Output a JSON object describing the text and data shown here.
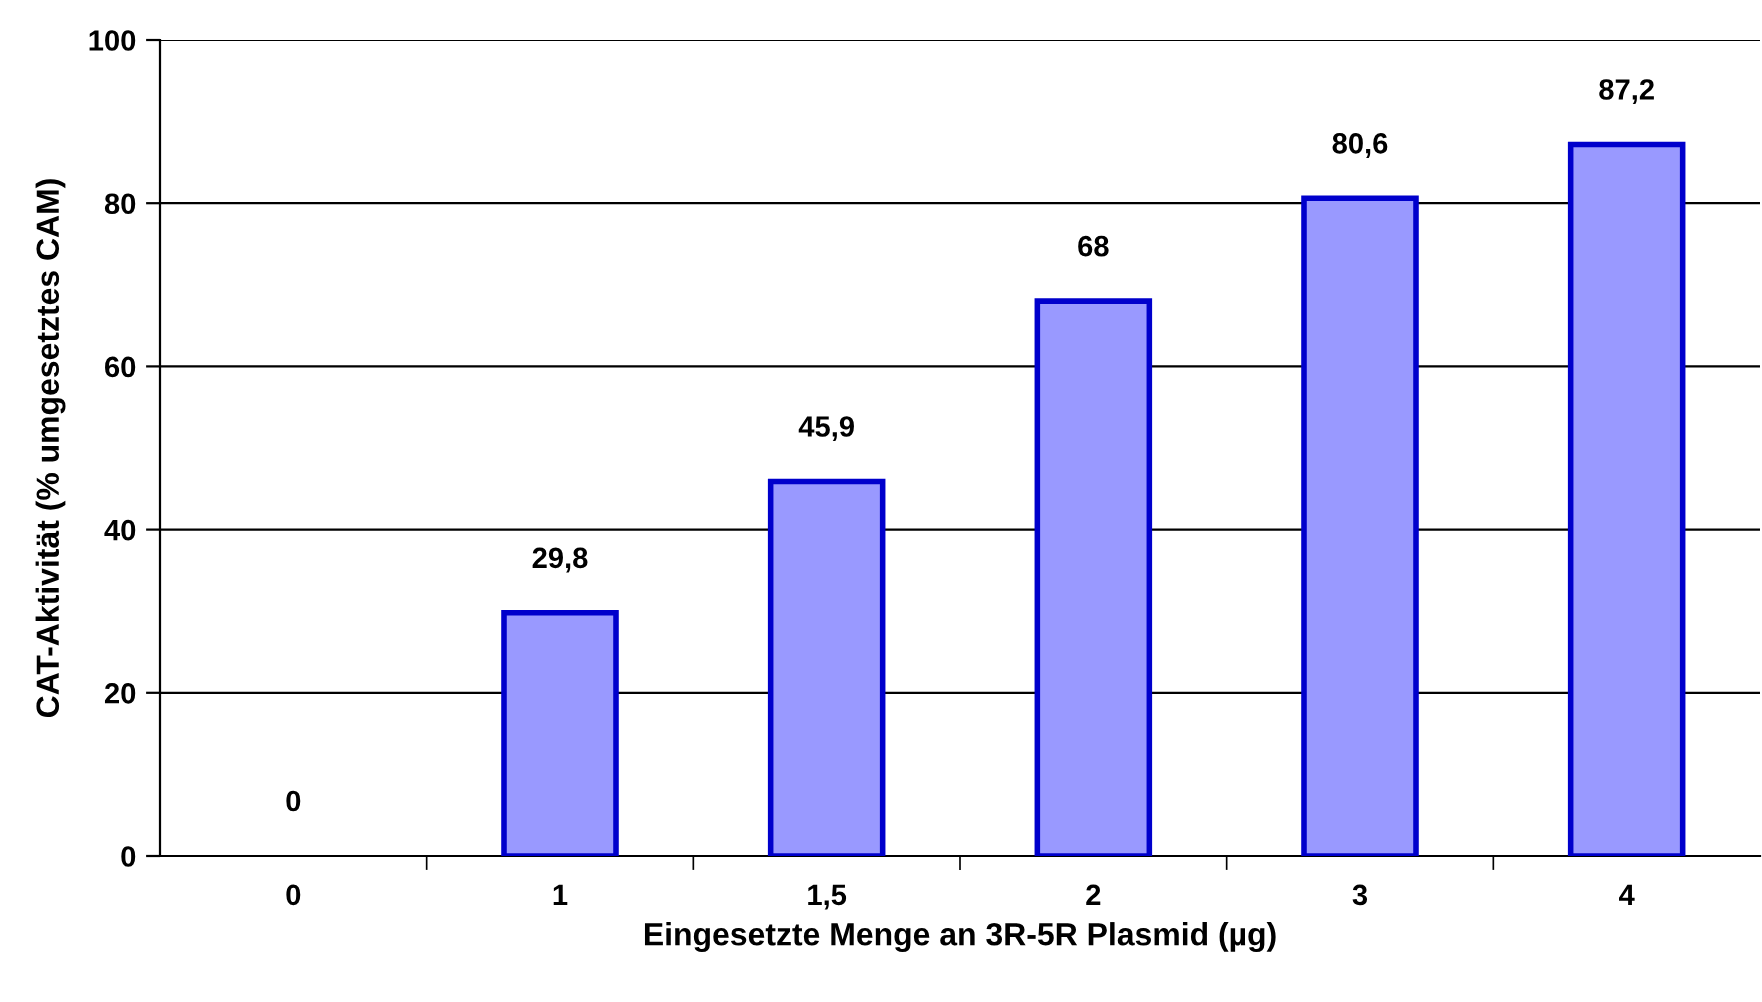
{
  "chart_data": {
    "type": "bar",
    "xlabel": "Eingesetzte Menge an 3R-5R Plasmid (µg)",
    "ylabel": "CAT-Aktivität (% umgesetztes CAM)",
    "categories": [
      "0",
      "1",
      "1,5",
      "2",
      "3",
      "4"
    ],
    "values": [
      0,
      29.8,
      45.9,
      68,
      80.6,
      87.2
    ],
    "value_labels": [
      "0",
      "29,8",
      "45,9",
      "68",
      "80,6",
      "87,2"
    ],
    "color": "#9999ff",
    "ylim": [
      0,
      100
    ],
    "yticks": [
      0,
      20,
      40,
      60,
      80,
      100
    ],
    "grid": "y",
    "legend": false
  }
}
